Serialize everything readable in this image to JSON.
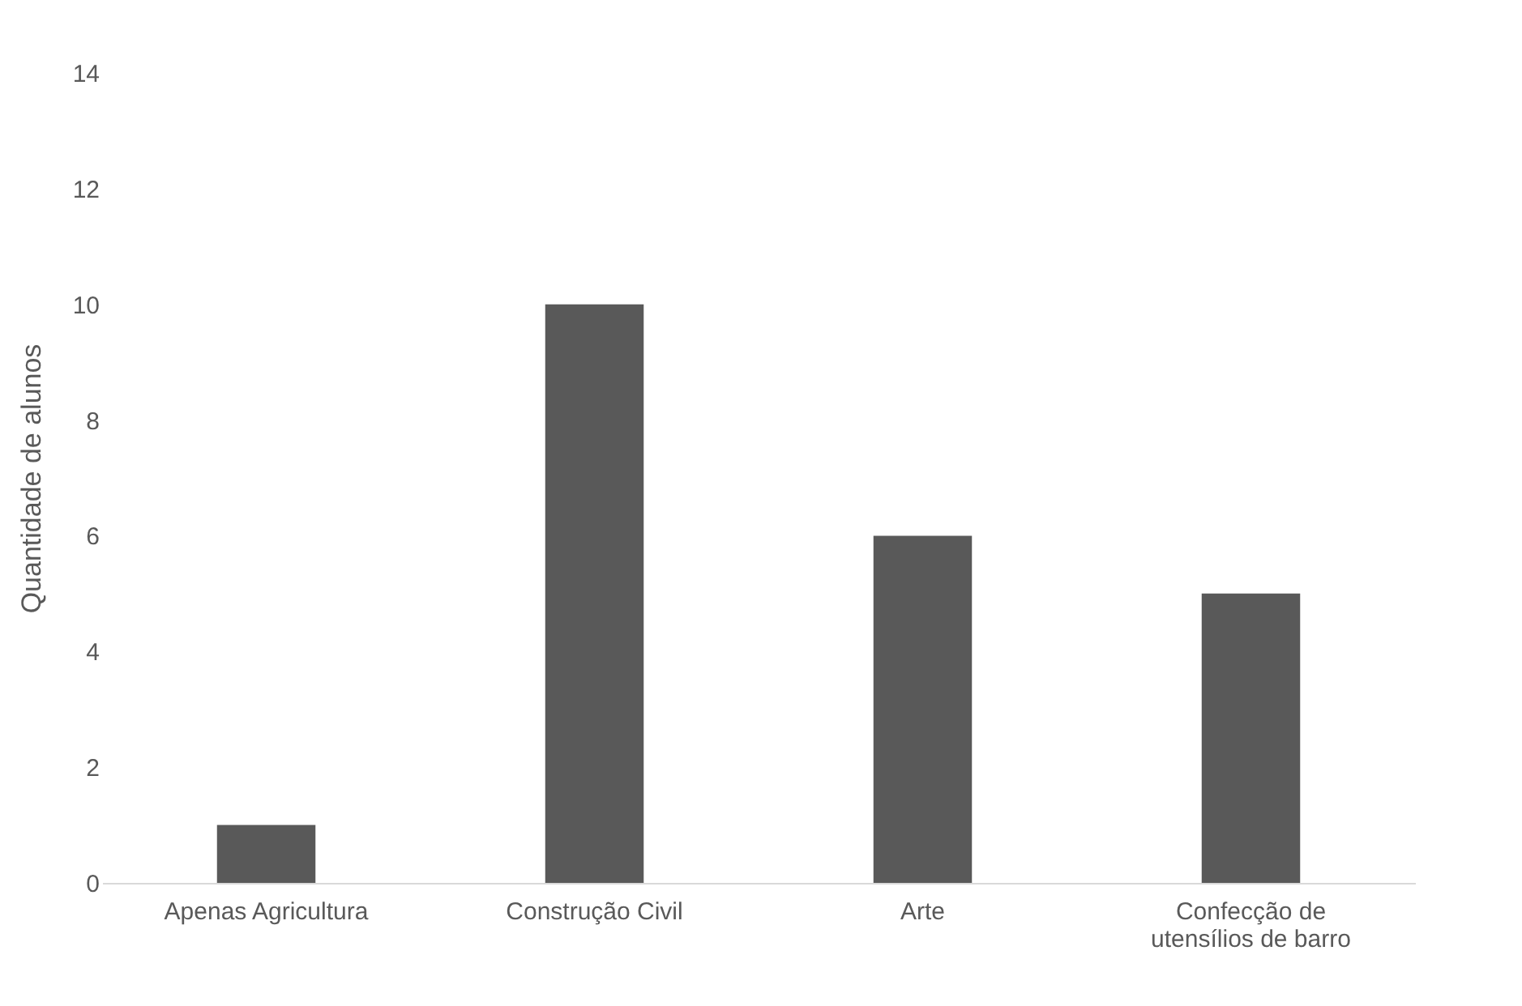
{
  "chart_data": {
    "type": "bar",
    "ylabel": "Quantidade de alunos",
    "categories": [
      "Apenas Agricultura",
      "Construção Civil",
      "Arte",
      "Confecção de utensílios de barro"
    ],
    "values": [
      1,
      10,
      6,
      5
    ],
    "color": "#595959",
    "ylim": [
      0,
      14
    ],
    "yticks": [
      0,
      2,
      4,
      6,
      8,
      10,
      12,
      14
    ],
    "grid": false
  }
}
